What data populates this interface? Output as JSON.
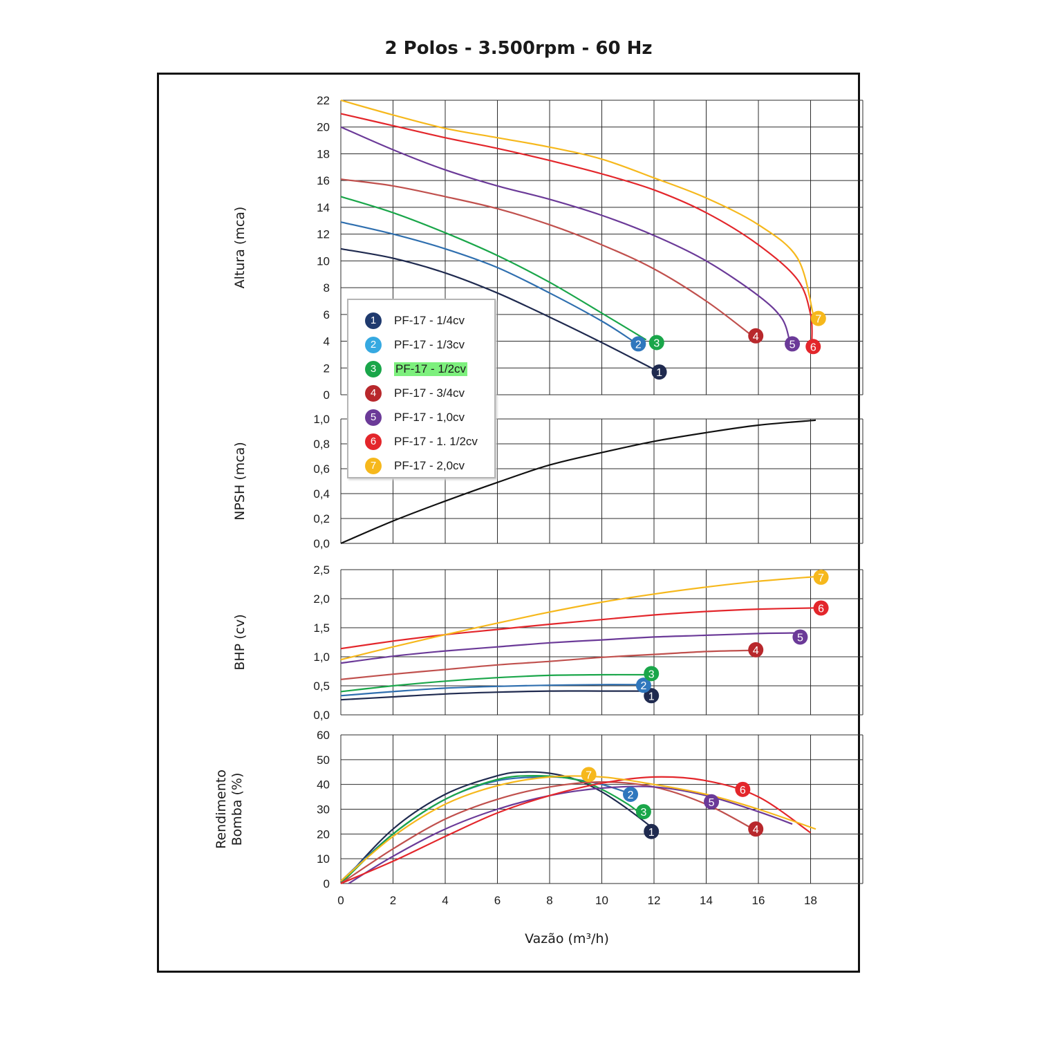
{
  "title": "2 Polos - 3.500rpm - 60 Hz",
  "x_label": "Vazão (m³/h)",
  "x_ticks": [
    "0",
    "2",
    "4",
    "6",
    "8",
    "10",
    "12",
    "14",
    "16",
    "18"
  ],
  "legend": [
    {
      "id": "1",
      "label": "PF-17 - 1/4cv",
      "color": "#1f3a6e",
      "highlight": false
    },
    {
      "id": "2",
      "label": "PF-17 - 1/3cv",
      "color": "#36a9e1",
      "highlight": false
    },
    {
      "id": "3",
      "label": "PF-17 - 1/2cv",
      "color": "#1aa64a",
      "highlight": true
    },
    {
      "id": "4",
      "label": "PF-17 - 3/4cv",
      "color": "#b8282c",
      "highlight": false
    },
    {
      "id": "5",
      "label": "PF-17 - 1,0cv",
      "color": "#6b3a98",
      "highlight": false
    },
    {
      "id": "6",
      "label": "PF-17 - 1. 1/2cv",
      "color": "#e3262b",
      "highlight": false
    },
    {
      "id": "7",
      "label": "PF-17 - 2,0cv",
      "color": "#f6b81c",
      "highlight": false
    }
  ],
  "chart_data": [
    {
      "type": "line",
      "ylabel": "Altura (mca)",
      "ylim": [
        0,
        22
      ],
      "y_ticks": [
        "0",
        "2",
        "4",
        "6",
        "8",
        "10",
        "12",
        "14",
        "16",
        "18",
        "20",
        "22"
      ],
      "xlim": [
        0,
        20
      ],
      "grid": true,
      "series": [
        {
          "name": "1",
          "line_color": "#1f2a4f",
          "marker_color": "#1f2a4f",
          "x": [
            0,
            2,
            4,
            6,
            8,
            10,
            12
          ],
          "y": [
            10.9,
            10.2,
            9.1,
            7.6,
            5.8,
            3.9,
            1.9
          ],
          "marker": [
            12.2,
            1.7
          ]
        },
        {
          "name": "2",
          "line_color": "#2f6faf",
          "marker_color": "#2f77bd",
          "x": [
            0,
            2,
            4,
            6,
            8,
            10,
            11.2
          ],
          "y": [
            12.9,
            12.0,
            10.9,
            9.5,
            7.6,
            5.5,
            4.0
          ],
          "marker": [
            11.4,
            3.8
          ]
        },
        {
          "name": "3",
          "line_color": "#1aa64a",
          "marker_color": "#1aa64a",
          "x": [
            0,
            2,
            4,
            6,
            8,
            10,
            11.7
          ],
          "y": [
            14.8,
            13.6,
            12.1,
            10.4,
            8.4,
            6.1,
            4.1
          ],
          "marker": [
            12.1,
            3.9
          ]
        },
        {
          "name": "4",
          "line_color": "#c0504d",
          "marker_color": "#b8282c",
          "x": [
            0,
            2,
            4,
            6,
            8,
            10,
            12,
            14,
            15.7
          ],
          "y": [
            16.1,
            15.6,
            14.8,
            13.9,
            12.7,
            11.2,
            9.4,
            7.0,
            4.5
          ],
          "marker": [
            15.9,
            4.4
          ]
        },
        {
          "name": "5",
          "line_color": "#6b3a98",
          "marker_color": "#6b3a98",
          "x": [
            0,
            2,
            4,
            6,
            8,
            10,
            12,
            14,
            16,
            16.9,
            17.2
          ],
          "y": [
            20.0,
            18.3,
            16.8,
            15.6,
            14.6,
            13.4,
            11.9,
            10.0,
            7.4,
            5.7,
            4.0
          ],
          "marker": [
            17.3,
            3.8
          ]
        },
        {
          "name": "6",
          "line_color": "#e3262b",
          "marker_color": "#e3262b",
          "x": [
            0,
            2,
            4,
            6,
            8,
            10,
            12,
            14,
            16,
            17.5,
            18.0,
            18.05
          ],
          "y": [
            21.0,
            20.1,
            19.2,
            18.4,
            17.5,
            16.5,
            15.3,
            13.6,
            11.2,
            8.6,
            6.0,
            4.0
          ],
          "marker": [
            18.1,
            3.6
          ]
        },
        {
          "name": "7",
          "line_color": "#f6b81c",
          "marker_color": "#f6b81c",
          "x": [
            0,
            2,
            4,
            6,
            8,
            10,
            12,
            14,
            16,
            17.5,
            18.1
          ],
          "y": [
            22.0,
            20.9,
            19.9,
            19.2,
            18.5,
            17.6,
            16.2,
            14.7,
            12.7,
            10.2,
            6.0
          ],
          "marker": [
            18.3,
            5.7
          ]
        }
      ]
    },
    {
      "type": "line",
      "ylabel": "NPSH (mca)",
      "ylim": [
        0,
        1
      ],
      "y_ticks": [
        "0,0",
        "0,2",
        "0,4",
        "0,6",
        "0,8",
        "1,0"
      ],
      "xlim": [
        0,
        20
      ],
      "grid": true,
      "series": [
        {
          "name": "",
          "line_color": "#111111",
          "x": [
            0,
            2,
            4,
            6,
            8,
            10,
            12,
            14,
            16,
            18.2
          ],
          "y": [
            0.0,
            0.18,
            0.34,
            0.49,
            0.63,
            0.73,
            0.82,
            0.89,
            0.95,
            0.99
          ]
        }
      ]
    },
    {
      "type": "line",
      "ylabel": "BHP (cv)",
      "ylim": [
        0,
        2.5
      ],
      "y_ticks": [
        "0,0",
        "0,5",
        "1,0",
        "1,5",
        "2,0",
        "2,5"
      ],
      "xlim": [
        0,
        20
      ],
      "grid": true,
      "series": [
        {
          "name": "1",
          "line_color": "#1f2a4f",
          "marker_color": "#1f2a4f",
          "x": [
            0,
            2,
            4,
            6,
            8,
            10,
            11.7
          ],
          "y": [
            0.26,
            0.31,
            0.36,
            0.39,
            0.41,
            0.41,
            0.41
          ],
          "marker": [
            11.9,
            0.33
          ]
        },
        {
          "name": "2",
          "line_color": "#2f6faf",
          "marker_color": "#2f77bd",
          "x": [
            0,
            2,
            4,
            6,
            8,
            10,
            11.5
          ],
          "y": [
            0.33,
            0.4,
            0.46,
            0.49,
            0.51,
            0.52,
            0.52
          ],
          "marker": [
            11.6,
            0.51
          ]
        },
        {
          "name": "3",
          "line_color": "#1aa64a",
          "marker_color": "#1aa64a",
          "x": [
            0,
            2,
            4,
            6,
            8,
            10,
            11.8
          ],
          "y": [
            0.4,
            0.5,
            0.58,
            0.64,
            0.68,
            0.69,
            0.69
          ],
          "marker": [
            11.9,
            0.71
          ]
        },
        {
          "name": "4",
          "line_color": "#c0504d",
          "marker_color": "#b8282c",
          "x": [
            0,
            2,
            4,
            6,
            8,
            10,
            12,
            14,
            15.8
          ],
          "y": [
            0.61,
            0.7,
            0.78,
            0.86,
            0.92,
            0.99,
            1.04,
            1.09,
            1.11
          ],
          "marker": [
            15.9,
            1.12
          ]
        },
        {
          "name": "5",
          "line_color": "#6b3a98",
          "marker_color": "#6b3a98",
          "x": [
            0,
            2,
            4,
            6,
            8,
            10,
            12,
            14,
            16,
            17.4
          ],
          "y": [
            0.89,
            1.01,
            1.1,
            1.17,
            1.24,
            1.29,
            1.34,
            1.37,
            1.4,
            1.41
          ],
          "marker": [
            17.6,
            1.34
          ]
        },
        {
          "name": "6",
          "line_color": "#e3262b",
          "marker_color": "#e3262b",
          "x": [
            0,
            2,
            4,
            6,
            8,
            10,
            12,
            14,
            16,
            18.2
          ],
          "y": [
            1.14,
            1.27,
            1.38,
            1.47,
            1.56,
            1.64,
            1.72,
            1.78,
            1.82,
            1.84
          ],
          "marker": [
            18.4,
            1.84
          ]
        },
        {
          "name": "7",
          "line_color": "#f6b81c",
          "marker_color": "#f6b81c",
          "x": [
            0,
            2,
            4,
            6,
            8,
            10,
            12,
            14,
            16,
            18.2
          ],
          "y": [
            0.95,
            1.17,
            1.38,
            1.58,
            1.77,
            1.94,
            2.08,
            2.2,
            2.3,
            2.38
          ],
          "marker": [
            18.4,
            2.37
          ]
        }
      ]
    },
    {
      "type": "line",
      "ylabel": "Rendimento Bomba (%)",
      "ylim": [
        0,
        60
      ],
      "y_ticks": [
        "0",
        "10",
        "20",
        "30",
        "40",
        "50",
        "60"
      ],
      "xlim": [
        0,
        20
      ],
      "grid": true,
      "series": [
        {
          "name": "1",
          "line_color": "#1f2a4f",
          "marker_color": "#1f2a4f",
          "x": [
            0,
            2,
            4,
            6,
            7,
            8,
            9,
            10,
            11,
            12
          ],
          "y": [
            0,
            22,
            36,
            43.5,
            45,
            44.5,
            42,
            37,
            30,
            22
          ],
          "marker": [
            11.9,
            21
          ]
        },
        {
          "name": "2",
          "line_color": "#2f6faf",
          "marker_color": "#2f77bd",
          "x": [
            0,
            2,
            4,
            6,
            8,
            9,
            10,
            10.9
          ],
          "y": [
            1,
            20,
            34,
            41.5,
            43,
            42,
            40,
            37
          ],
          "marker": [
            11.1,
            36
          ]
        },
        {
          "name": "3",
          "line_color": "#1aa64a",
          "marker_color": "#1aa64a",
          "x": [
            0,
            2,
            4,
            6,
            7.5,
            9,
            10,
            11,
            11.5
          ],
          "y": [
            0,
            20,
            34,
            42,
            43.5,
            42,
            38,
            32,
            28
          ],
          "marker": [
            11.6,
            29
          ]
        },
        {
          "name": "4",
          "line_color": "#c0504d",
          "marker_color": "#b8282c",
          "x": [
            0,
            2,
            4,
            6,
            8,
            10,
            12,
            14,
            15.8
          ],
          "y": [
            0,
            14,
            26,
            34,
            39,
            41,
            39,
            32,
            22
          ],
          "marker": [
            15.9,
            22
          ]
        },
        {
          "name": "5",
          "line_color": "#6b3a98",
          "marker_color": "#6b3a98",
          "x": [
            0.3,
            2,
            4,
            6,
            8,
            10,
            12,
            14,
            16,
            17.3
          ],
          "y": [
            0,
            11,
            22,
            30,
            35.5,
            38.5,
            39,
            35.5,
            29,
            24
          ],
          "marker": [
            14.2,
            33
          ]
        },
        {
          "name": "6",
          "line_color": "#e3262b",
          "marker_color": "#e3262b",
          "x": [
            0,
            2,
            4,
            6,
            8,
            10,
            12,
            14,
            16,
            18
          ],
          "y": [
            0,
            9,
            19,
            28.5,
            35.5,
            40.5,
            43,
            41.5,
            35,
            20.5
          ],
          "marker": [
            15.4,
            38
          ]
        },
        {
          "name": "7",
          "line_color": "#f6b81c",
          "marker_color": "#f6b81c",
          "x": [
            0,
            2,
            4,
            6,
            8,
            10,
            12,
            14,
            16,
            18.2
          ],
          "y": [
            1,
            19,
            32,
            39.5,
            43,
            43,
            40,
            36,
            30,
            22
          ],
          "marker": [
            9.5,
            44
          ]
        }
      ]
    }
  ]
}
